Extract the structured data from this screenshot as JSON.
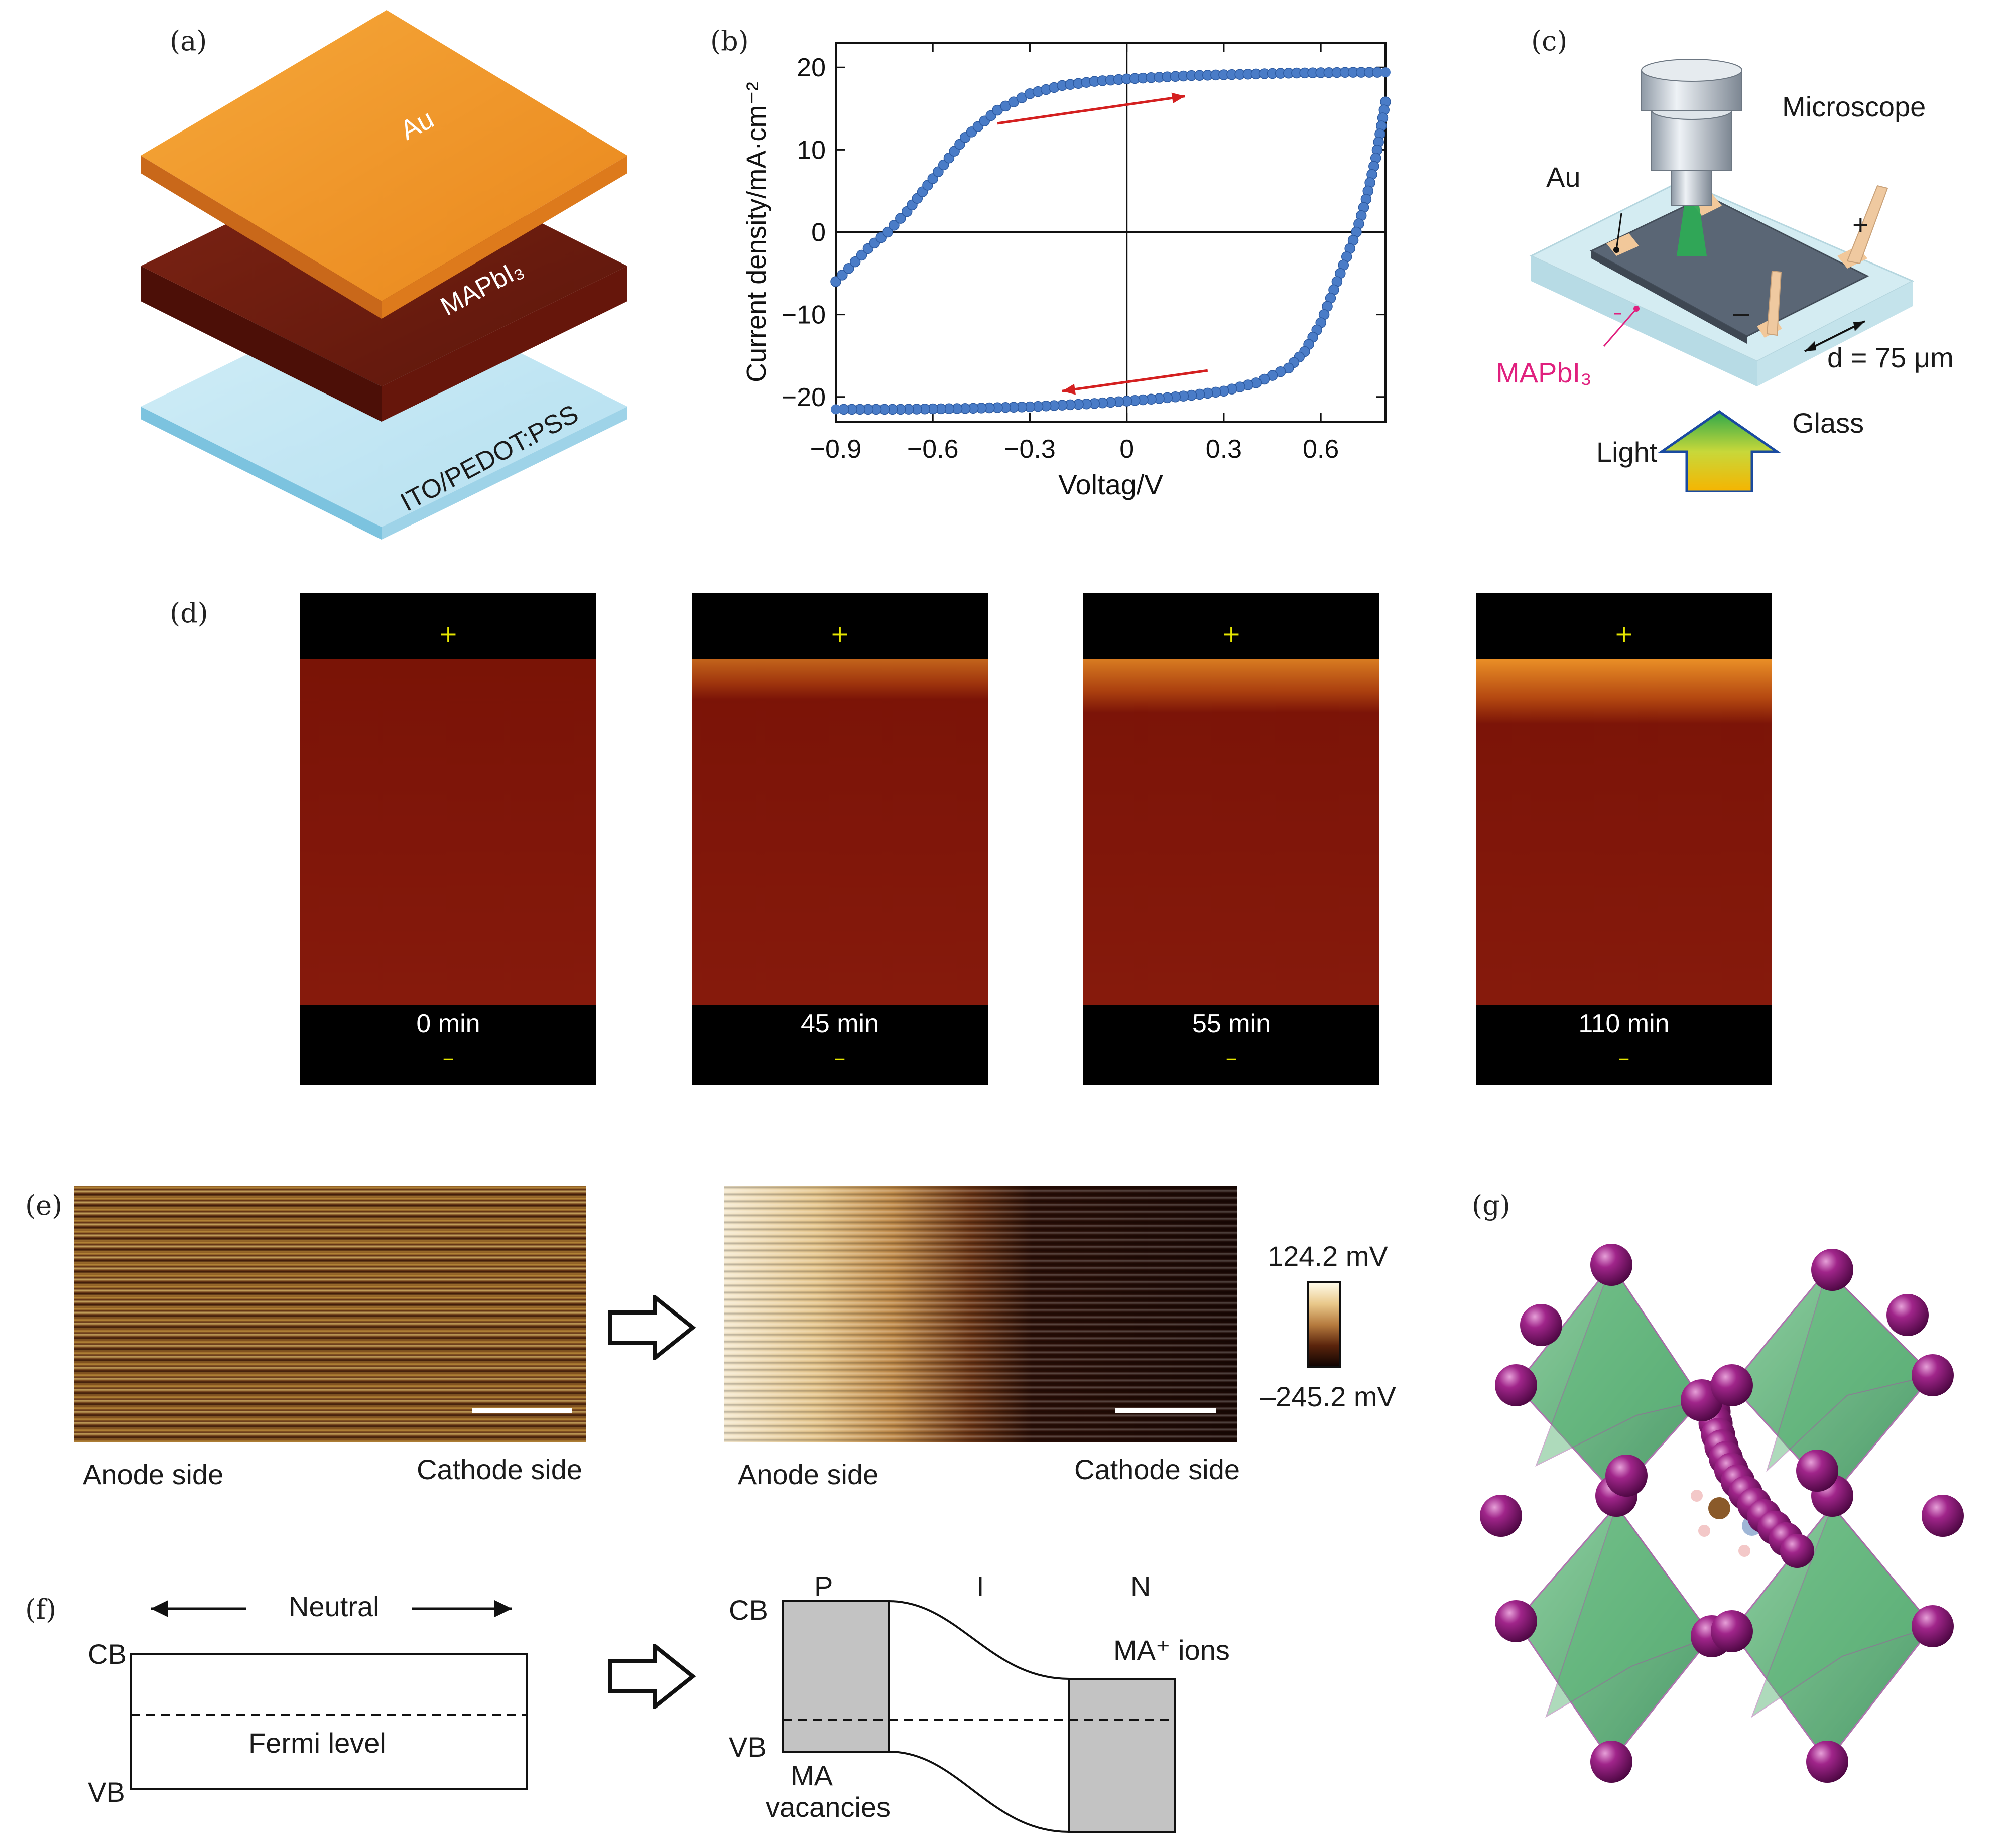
{
  "panels": {
    "a": {
      "label": "(a)",
      "layers": [
        "Au",
        "MAPbI₃",
        "ITO/PEDOT:PSS"
      ]
    },
    "b": {
      "label": "(b)"
    },
    "c": {
      "label": "(c)",
      "microscope": "Microscope",
      "au": "Au",
      "material": "MAPbI₃",
      "distance": "d = 75 μm",
      "glass": "Glass",
      "light": "Light",
      "plus": "+",
      "minus": "–"
    },
    "d": {
      "label": "(d)",
      "plus": "+",
      "minus": "–",
      "frames": [
        {
          "time": "0 min",
          "glow": 0.0
        },
        {
          "time": "45 min",
          "glow": 0.45
        },
        {
          "time": "55 min",
          "glow": 0.75
        },
        {
          "time": "110 min",
          "glow": 1.0
        }
      ]
    },
    "e": {
      "label": "(e)",
      "anode": "Anode side",
      "cathode": "Cathode side",
      "scale_max": "124.2 mV",
      "scale_min": "–245.2 mV"
    },
    "f": {
      "label": "(f)",
      "neutral": "Neutral",
      "cb": "CB",
      "vb": "VB",
      "fermi": "Fermi level",
      "p": "P",
      "i": "I",
      "n": "N",
      "ma_ions": "MA⁺ ions",
      "ma_vac_1": "MA",
      "ma_vac_2": "vacancies"
    },
    "g": {
      "label": "(g)"
    }
  },
  "chart_data": {
    "type": "scatter",
    "xlabel": "Voltag/V",
    "ylabel": "Current density/mA·cm⁻²",
    "xlim": [
      -0.9,
      0.8
    ],
    "ylim": [
      -23,
      23
    ],
    "xticks": [
      -0.9,
      -0.6,
      -0.3,
      0,
      0.3,
      0.6
    ],
    "xtick_labels": [
      "−0.9",
      "−0.6",
      "−0.3",
      "0",
      "0.3",
      "0.6"
    ],
    "yticks": [
      -20,
      -10,
      0,
      10,
      20
    ],
    "ytick_labels": [
      "−20",
      "−10",
      "0",
      "10",
      "20"
    ],
    "series": [
      {
        "values": [
          [
            -0.9,
            -6.0
          ],
          [
            -0.8,
            -2.0
          ],
          [
            -0.74,
            0
          ],
          [
            -0.68,
            2.5
          ],
          [
            -0.6,
            6.5
          ],
          [
            -0.5,
            11.5
          ],
          [
            -0.4,
            14.8
          ],
          [
            -0.3,
            16.8
          ],
          [
            -0.2,
            17.8
          ],
          [
            -0.1,
            18.3
          ],
          [
            0,
            18.6
          ],
          [
            0.1,
            18.8
          ],
          [
            0.2,
            19.0
          ],
          [
            0.3,
            19.1
          ],
          [
            0.4,
            19.2
          ],
          [
            0.5,
            19.3
          ],
          [
            0.6,
            19.35
          ],
          [
            0.7,
            19.4
          ],
          [
            0.8,
            19.4
          ]
        ]
      },
      {
        "values": [
          [
            0.8,
            15.8
          ],
          [
            0.77,
            9.0
          ],
          [
            0.74,
            4.0
          ],
          [
            0.71,
            0
          ],
          [
            0.68,
            -3.0
          ],
          [
            0.64,
            -7.0
          ],
          [
            0.6,
            -11.0
          ],
          [
            0.55,
            -14.5
          ],
          [
            0.5,
            -16.5
          ],
          [
            0.4,
            -18.3
          ],
          [
            0.3,
            -19.3
          ],
          [
            0.2,
            -19.8
          ],
          [
            0.1,
            -20.2
          ],
          [
            0,
            -20.5
          ],
          [
            -0.1,
            -20.8
          ],
          [
            -0.2,
            -21.0
          ],
          [
            -0.3,
            -21.2
          ],
          [
            -0.4,
            -21.3
          ],
          [
            -0.5,
            -21.4
          ],
          [
            -0.6,
            -21.45
          ],
          [
            -0.7,
            -21.5
          ],
          [
            -0.8,
            -21.5
          ],
          [
            -0.9,
            -21.5
          ]
        ]
      }
    ],
    "marker_color": "#4a7cc7",
    "arrow_color": "#d42020"
  },
  "colors": {
    "au": "#f39a24",
    "mapbi": "#6e1d10",
    "ito": "#bfe6f3",
    "gray": "#c3c3c3",
    "green": "#4aa86a",
    "purple": "#8e1a78"
  }
}
